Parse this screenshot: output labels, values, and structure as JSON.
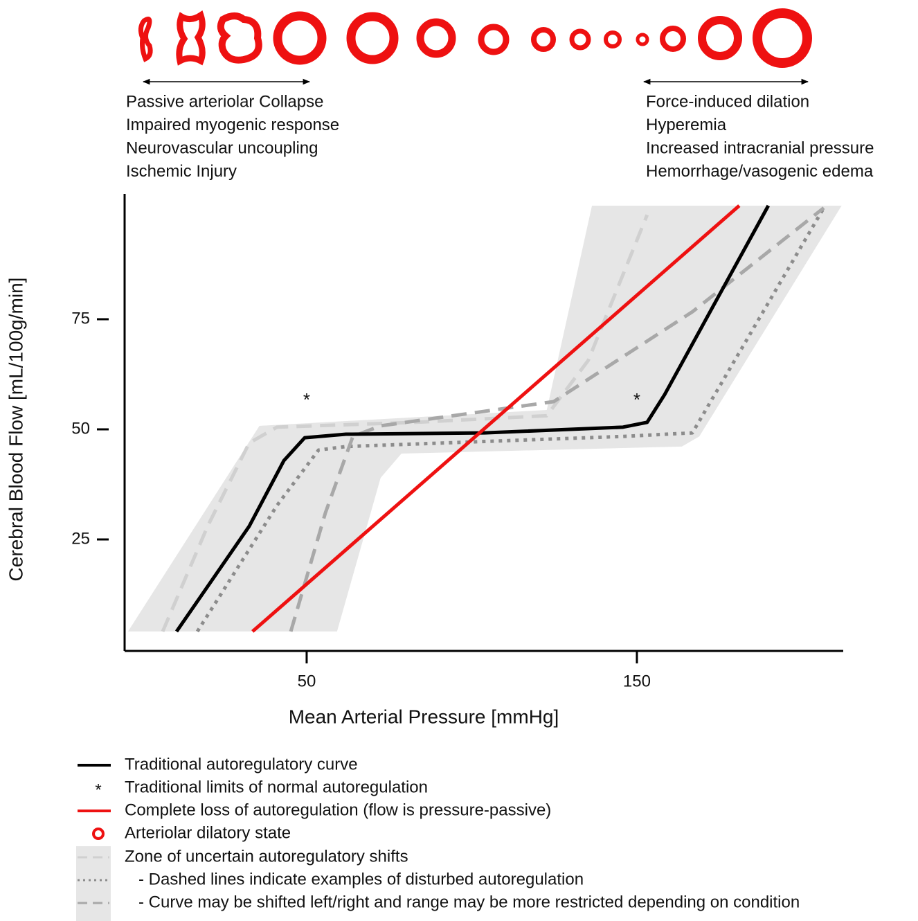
{
  "chart_data": {
    "type": "line",
    "xlabel": "Mean Arterial Pressure [mmHg]",
    "ylabel": "Cerebral Blood Flow [mL/100g/min]",
    "xlim": [
      -5,
      212
    ],
    "ylim": [
      0,
      103
    ],
    "xticks": [
      50,
      150
    ],
    "yticks": [
      25,
      50,
      75
    ],
    "annotations_left": [
      "Passive arteriolar Collapse",
      "Impaired myogenic response",
      "Neurovascular uncoupling",
      "Ischemic Injury"
    ],
    "annotations_right": [
      "Force-induced dilation",
      "Hyperemia",
      "Increased intracranial pressure",
      "Hemorrhage/vasogenic edema"
    ],
    "vessel_legend": "Arteriolar dilatory state",
    "zone": {
      "name": "Zone of uncertain autoregulatory shifts",
      "notes": [
        "- Dashed lines indicate examples of disturbed autoregulation",
        "- Curve may be shifted left/right and range may be more restricted depending on condition"
      ],
      "color": "#e6e6e6",
      "x": [
        -4.1,
        35.7,
        122.7,
        136.4,
        212,
        168.9,
        163.6,
        78.7,
        72.4,
        59.2
      ],
      "y": [
        4.1,
        50.8,
        54.4,
        100.8,
        100.8,
        48.4,
        46.1,
        44.5,
        39,
        4.1
      ],
      "lines": [
        {
          "style": "dashed",
          "color": "#d0d0d0",
          "x": [
            6.4,
            20,
            32.6,
            41,
            82.9,
            122.7,
            135.3,
            153.1
          ],
          "values": [
            4.1,
            28,
            46.9,
            50.5,
            51.6,
            53.1,
            65.7,
            98.7
          ]
        },
        {
          "style": "dotted",
          "color": "#8c8c8c",
          "x": [
            16.9,
            41,
            53.6,
            61.9,
            145.8,
            166.8,
            206.6
          ],
          "values": [
            4.1,
            32.7,
            45.3,
            46.1,
            48.4,
            49.2,
            100.3
          ]
        },
        {
          "style": "dashed",
          "color": "#a8a8a8",
          "x": [
            45.2,
            55.7,
            64,
            72.4,
            124.8,
            166.8,
            206.6
          ],
          "values": [
            4.1,
            31.1,
            48.4,
            50.8,
            56.3,
            76.7,
            100.3
          ]
        }
      ]
    },
    "series": [
      {
        "name": "Traditional autoregulatory curve",
        "color": "#000000",
        "style": "solid",
        "x": [
          10.6,
          32.6,
          43.1,
          49.4,
          61.9,
          103.9,
          145.8,
          153.1,
          158.4,
          189.8
        ],
        "values": [
          4.1,
          28,
          42.9,
          48.1,
          48.9,
          49.2,
          50.5,
          51.6,
          57.9,
          100.8
        ]
      },
      {
        "name": "Traditional limits of normal autoregulation",
        "color": "#222222",
        "style": "star",
        "x": [
          50,
          150
        ],
        "values": [
          57.1,
          57.1
        ]
      },
      {
        "name": "Complete loss of autoregulation (flow is pressure-passive)",
        "color": "#ee1111",
        "style": "solid",
        "x": [
          33.6,
          181
        ],
        "values": [
          4.1,
          100.8
        ]
      }
    ]
  }
}
